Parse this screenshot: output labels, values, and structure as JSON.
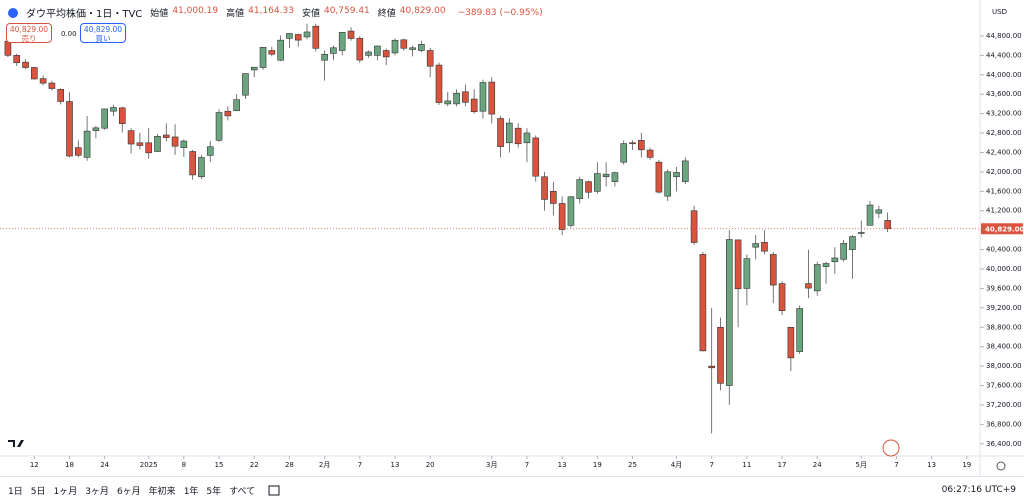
{
  "header": {
    "symbol": "ダウ平均株価・1日・TVC",
    "ohlc": [
      {
        "label": "始値",
        "value": "41,000.19"
      },
      {
        "label": "高値",
        "value": "41,164.33"
      },
      {
        "label": "安値",
        "value": "40,759.41"
      },
      {
        "label": "終値",
        "value": "40,829.00"
      }
    ],
    "change": "−389.83 (−0.95%)"
  },
  "trade": {
    "sell_price": "40,829.00",
    "sell_label": "売り",
    "spread": "0.00",
    "buy_price": "40,829.00",
    "buy_label": "買い"
  },
  "currency": "USD",
  "timeframes": [
    "1日",
    "5日",
    "1ヶ月",
    "3ヶ月",
    "6ヶ月",
    "年初来",
    "1年",
    "5年",
    "すべて"
  ],
  "clock": "06:27:16 UTC+9",
  "chart_data": {
    "type": "candlestick",
    "up_color": "#6ba57f",
    "down_color": "#d9543f",
    "grid": false,
    "open": [
      44690,
      44400,
      44260,
      44150,
      43920,
      43830,
      43700,
      43450,
      42500,
      42300,
      42850,
      42900,
      43250,
      43320,
      42850,
      42600,
      42600,
      42420,
      42760,
      42720,
      42500,
      42420,
      41900,
      42340,
      42650,
      43250,
      43260,
      43580,
      44100,
      44150,
      44500,
      44300,
      44750,
      44830,
      44780,
      45000,
      44300,
      44440,
      44500,
      44900,
      44750,
      44400,
      44400,
      44500,
      44450,
      44720,
      44520,
      44500,
      44500,
      44200,
      43400,
      43400,
      43650,
      43500,
      43250,
      43850,
      43100,
      42600,
      42900,
      42600,
      42700,
      41900,
      41600,
      41350,
      40900,
      41450,
      41800,
      41600,
      41900,
      41800,
      42200,
      42600,
      42650,
      42450,
      42200,
      41500,
      41900,
      41800,
      41200,
      40300,
      38000,
      38800,
      37600,
      40600,
      39600,
      40450,
      40550,
      40300,
      39700,
      38800,
      38300,
      39700,
      39550,
      40050,
      40150,
      40200,
      40400,
      40750,
      40900,
      41150,
      41000.19
    ],
    "high": [
      44700,
      44430,
      44320,
      44160,
      43990,
      43880,
      43720,
      43640,
      42650,
      43150,
      42950,
      43300,
      43380,
      43340,
      42900,
      42800,
      42900,
      42780,
      43000,
      42980,
      42670,
      42450,
      42350,
      42640,
      43290,
      43350,
      43600,
      44030,
      44160,
      44570,
      44580,
      44810,
      44860,
      44850,
      45050,
      45050,
      44500,
      44600,
      44880,
      44980,
      44800,
      44500,
      44600,
      44540,
      44750,
      44740,
      44600,
      44700,
      44550,
      44250,
      43650,
      43700,
      43800,
      43700,
      43900,
      43950,
      43150,
      43100,
      43000,
      42900,
      42750,
      42000,
      41800,
      41500,
      41500,
      41900,
      41820,
      42200,
      42200,
      42000,
      42650,
      42650,
      42800,
      42500,
      42250,
      42050,
      42100,
      42300,
      41300,
      40350,
      39200,
      39000,
      40800,
      40600,
      40300,
      40700,
      40800,
      40350,
      39750,
      38800,
      39250,
      40400,
      40150,
      40150,
      40450,
      40600,
      40700,
      41000,
      41400,
      41300,
      41164.33
    ],
    "low": [
      44360,
      44180,
      44120,
      43900,
      43780,
      43680,
      43390,
      42300,
      42300,
      42230,
      42690,
      42870,
      43150,
      42810,
      42380,
      42460,
      42270,
      42410,
      42630,
      42350,
      42310,
      41840,
      41850,
      42200,
      42620,
      43060,
      43250,
      43500,
      43950,
      44100,
      44380,
      44280,
      44550,
      44580,
      44730,
      44480,
      43880,
      44300,
      44400,
      44700,
      44250,
      44350,
      44300,
      44200,
      44400,
      44500,
      44380,
      44470,
      43950,
      43380,
      43350,
      43350,
      43350,
      43200,
      43100,
      43000,
      42300,
      42400,
      42500,
      42200,
      41800,
      41200,
      41100,
      40700,
      40850,
      41350,
      41450,
      41550,
      41700,
      41700,
      42150,
      42450,
      42300,
      42250,
      41550,
      41400,
      41600,
      41750,
      40500,
      38300,
      36612,
      37500,
      37200,
      38800,
      39250,
      40200,
      40300,
      39300,
      39050,
      37900,
      38250,
      39400,
      39450,
      39700,
      39900,
      40150,
      39800,
      40650,
      40900,
      41050,
      40759.41
    ],
    "close": [
      44401,
      44248,
      44149,
      43914,
      43828,
      43717,
      43450,
      42327,
      42342,
      42840,
      42907,
      43297,
      43326,
      42992,
      42574,
      42544,
      42392,
      42732,
      42706,
      42528,
      42635,
      41938,
      42297,
      42518,
      43222,
      43153,
      43488,
      44025,
      44157,
      44565,
      44424,
      44713,
      44850,
      44714,
      44882,
      44545,
      44422,
      44556,
      44873,
      44747,
      44303,
      44470,
      44593,
      44368,
      44711,
      44546,
      44556,
      44627,
      44176,
      43428,
      43461,
      43621,
      43433,
      43239,
      43841,
      43191,
      42521,
      43006,
      42579,
      42802,
      41912,
      41433,
      41350,
      40813,
      41488,
      41842,
      41581,
      41965,
      41953,
      41985,
      42583,
      42588,
      42455,
      42300,
      41584,
      42002,
      41989,
      42226,
      40546,
      38315,
      37966,
      37646,
      40608,
      39594,
      40213,
      40525,
      40368,
      39669,
      39142,
      38170,
      39187,
      39607,
      40093,
      40114,
      40228,
      40528,
      40669,
      40753,
      41317,
      41219,
      40829
    ],
    "ylim": [
      36170,
      45540
    ],
    "yticks": [
      {
        "value": 36400,
        "label": "36,400.00"
      },
      {
        "value": 36800,
        "label": "36,800.00"
      },
      {
        "value": 37200,
        "label": "37,200.00"
      },
      {
        "value": 37600,
        "label": "37,600.00"
      },
      {
        "value": 38000,
        "label": "38,000.00"
      },
      {
        "value": 38400,
        "label": "38,400.00"
      },
      {
        "value": 38800,
        "label": "38,800.00"
      },
      {
        "value": 39200,
        "label": "39,200.00"
      },
      {
        "value": 39600,
        "label": "39,600.00"
      },
      {
        "value": 40000,
        "label": "40,000.00"
      },
      {
        "value": 40400,
        "label": "40,400.00"
      },
      {
        "value": 40800,
        "label": "40,800.00"
      },
      {
        "value": 41200,
        "label": "41,200.00"
      },
      {
        "value": 41600,
        "label": "41,600.00"
      },
      {
        "value": 42000,
        "label": "42,000.00"
      },
      {
        "value": 42400,
        "label": "42,400.00"
      },
      {
        "value": 42800,
        "label": "42,800.00"
      },
      {
        "value": 43200,
        "label": "43,200.00"
      },
      {
        "value": 43600,
        "label": "43,600.00"
      },
      {
        "value": 44000,
        "label": "44,000.00"
      },
      {
        "value": 44400,
        "label": "44,400.00"
      },
      {
        "value": 44800,
        "label": "44,800.00"
      }
    ],
    "xlim": [
      -0.9,
      110.5
    ],
    "xticks": [
      {
        "value": 3,
        "label": "12"
      },
      {
        "value": 7,
        "label": "18"
      },
      {
        "value": 11,
        "label": "24"
      },
      {
        "value": 16,
        "label": "2025"
      },
      {
        "value": 20,
        "label": "8"
      },
      {
        "value": 24,
        "label": "15"
      },
      {
        "value": 28,
        "label": "22"
      },
      {
        "value": 32,
        "label": "28"
      },
      {
        "value": 36,
        "label": "2月"
      },
      {
        "value": 40,
        "label": "7"
      },
      {
        "value": 44,
        "label": "13"
      },
      {
        "value": 48,
        "label": "20"
      },
      {
        "value": 55,
        "label": "3月"
      },
      {
        "value": 59,
        "label": "7"
      },
      {
        "value": 63,
        "label": "13"
      },
      {
        "value": 67,
        "label": "19"
      },
      {
        "value": 71,
        "label": "25"
      },
      {
        "value": 76,
        "label": "4月"
      },
      {
        "value": 80,
        "label": "7"
      },
      {
        "value": 84,
        "label": "11"
      },
      {
        "value": 88,
        "label": "17"
      },
      {
        "value": 92,
        "label": "24"
      },
      {
        "value": 97,
        "label": "5月"
      },
      {
        "value": 101,
        "label": "7"
      },
      {
        "value": 105,
        "label": "13"
      },
      {
        "value": 109,
        "label": "19"
      }
    ],
    "last_price": {
      "value": 40829,
      "label": "40,829.00"
    }
  }
}
